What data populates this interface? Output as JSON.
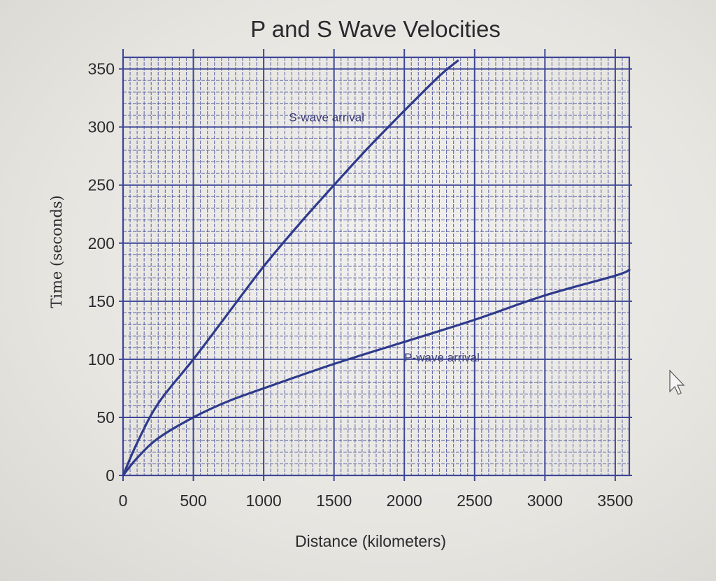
{
  "chart_data": {
    "type": "line",
    "title": "P and S Wave Velocities",
    "xlabel": "Distance (kilometers)",
    "ylabel": "Time (seconds)",
    "xlim": [
      0,
      3600
    ],
    "ylim": [
      0,
      360
    ],
    "xticks": [
      0,
      500,
      1000,
      1500,
      2000,
      2500,
      3000,
      3500
    ],
    "yticks": [
      0,
      50,
      100,
      150,
      200,
      250,
      300,
      350
    ],
    "grid": true,
    "series": [
      {
        "name": "S-wave arrival",
        "x": [
          0,
          100,
          250,
          500,
          750,
          1000,
          1250,
          1500,
          1750,
          2000,
          2250,
          2380
        ],
        "y": [
          0,
          28,
          62,
          100,
          140,
          180,
          216,
          250,
          283,
          314,
          344,
          357
        ]
      },
      {
        "name": "P-wave arrival",
        "x": [
          0,
          100,
          250,
          500,
          750,
          1000,
          1500,
          2000,
          2500,
          3000,
          3500,
          3600
        ],
        "y": [
          0,
          15,
          32,
          50,
          64,
          75,
          96,
          115,
          134,
          155,
          172,
          177
        ]
      }
    ],
    "annotations": [
      {
        "text": "S-wave arrival",
        "x": 1180,
        "y": 305
      },
      {
        "text": "P-wave arrival",
        "x": 2000,
        "y": 98
      }
    ]
  }
}
